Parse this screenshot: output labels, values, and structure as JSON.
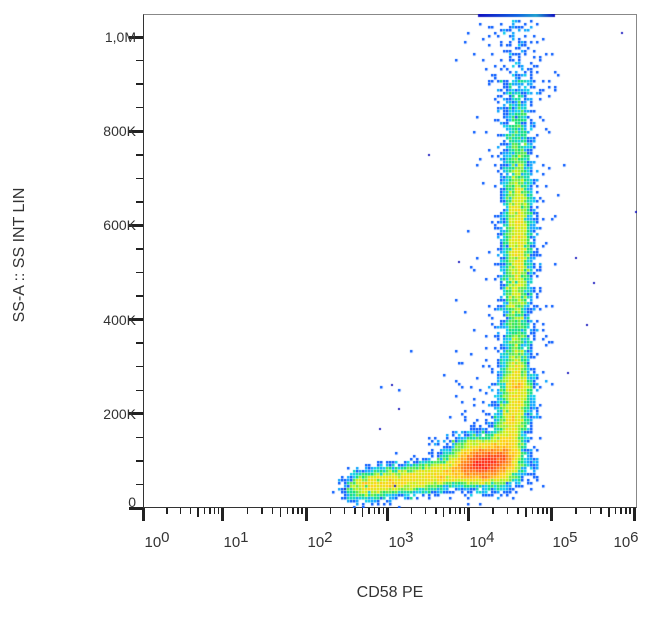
{
  "chart_data": {
    "type": "scatter",
    "subtype": "flow-cytometry-density-dot-plot",
    "title": "",
    "xlabel": "CD58 PE",
    "ylabel": "SS-A :: SS INT LIN",
    "x_scale": "log",
    "y_scale": "linear",
    "xlim": [
      1,
      1000000
    ],
    "ylim": [
      0,
      1050000
    ],
    "x_ticks": [
      {
        "base": "10",
        "exp": "0",
        "value": 1
      },
      {
        "base": "10",
        "exp": "1",
        "value": 10
      },
      {
        "base": "10",
        "exp": "2",
        "value": 100
      },
      {
        "base": "10",
        "exp": "3",
        "value": 1000
      },
      {
        "base": "10",
        "exp": "4",
        "value": 10000
      },
      {
        "base": "10",
        "exp": "5",
        "value": 100000
      },
      {
        "base": "10",
        "exp": "6",
        "value": 1000000
      }
    ],
    "y_ticks": [
      {
        "label": "0",
        "value": 0
      },
      {
        "label": "200K",
        "value": 200000
      },
      {
        "label": "400K",
        "value": 400000
      },
      {
        "label": "600K",
        "value": 600000
      },
      {
        "label": "800K",
        "value": 800000
      },
      {
        "label": "1,0M",
        "value": 1000000
      }
    ],
    "y_minor_step": 50000,
    "grid": false,
    "legend": null,
    "colormap": [
      "#0000c8",
      "#0050ff",
      "#00c8ff",
      "#00e060",
      "#c8f000",
      "#ffd000",
      "#ff7000",
      "#ff0000"
    ],
    "populations": [
      {
        "name": "main-cluster (lymphocytes, CD58+)",
        "x_center": 12000,
        "y_center": 90000,
        "density": "highest"
      },
      {
        "name": "low-SS tail",
        "x_range": [
          300,
          8000
        ],
        "y_range": [
          20000,
          120000
        ],
        "density": "medium"
      },
      {
        "name": "granulocyte column",
        "x_center": 30000,
        "y_range": [
          150000,
          1050000
        ],
        "density": "high",
        "peaks_y": [
          270000,
          600000
        ]
      },
      {
        "name": "saturated ceiling events",
        "x_range": [
          12000,
          60000
        ],
        "y_value": 1050000
      }
    ]
  }
}
